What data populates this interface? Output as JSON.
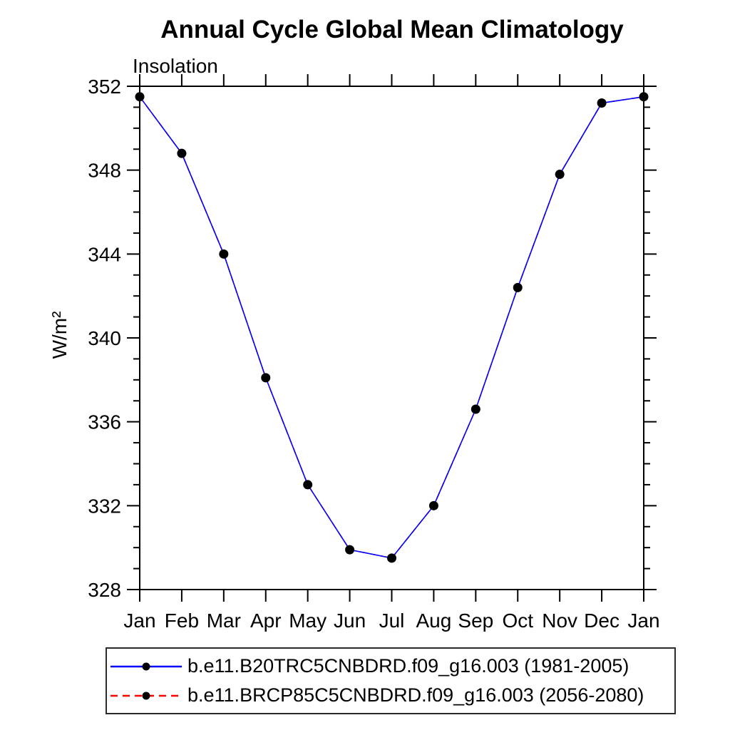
{
  "chart_data": {
    "type": "line",
    "title": "Annual Cycle Global Mean Climatology",
    "subtitle": "Insolation",
    "ylabel": "W/m²",
    "categories": [
      "Jan",
      "Feb",
      "Mar",
      "Apr",
      "May",
      "Jun",
      "Jul",
      "Aug",
      "Sep",
      "Oct",
      "Nov",
      "Dec",
      "Jan"
    ],
    "ylim": [
      328,
      352
    ],
    "ytick_major": [
      328,
      332,
      336,
      340,
      344,
      348,
      352
    ],
    "ytick_minor_step": 1,
    "grid": "off",
    "legend_position": "bottom",
    "axis_color": "#000000",
    "series": [
      {
        "name": "b.e11.B20TRC5CNBDRD.f09_g16.003 (1981-2005)",
        "color": "#0000ff",
        "line_style": "solid",
        "marker": "filled-circle",
        "marker_color": "#000000",
        "values": [
          351.5,
          348.8,
          344.0,
          338.1,
          333.0,
          329.9,
          329.5,
          332.0,
          336.6,
          342.4,
          347.8,
          351.2,
          351.5
        ]
      },
      {
        "name": "b.e11.BRCP85C5CNBDRD.f09_g16.003 (2056-2080)",
        "color": "#ff0000",
        "line_style": "dashed",
        "marker": "filled-circle",
        "marker_color": "#000000",
        "values": [
          351.5,
          348.8,
          344.0,
          338.1,
          333.0,
          329.9,
          329.5,
          332.0,
          336.6,
          342.4,
          347.8,
          351.2,
          351.5
        ]
      }
    ]
  }
}
